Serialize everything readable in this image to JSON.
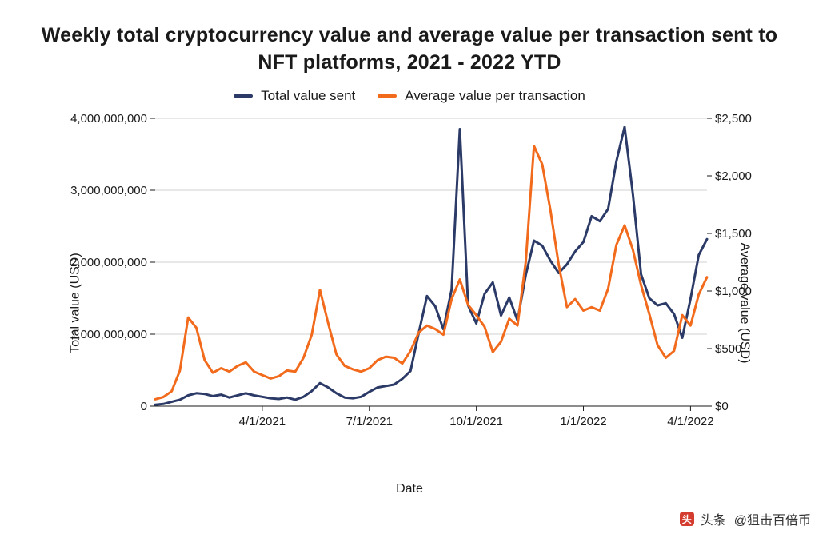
{
  "chart": {
    "type": "line-dual-axis",
    "title": "Weekly total cryptocurrency value and average value per transaction sent to NFT platforms, 2021 - 2022 YTD",
    "x_axis": {
      "label": "Date",
      "tick_labels": [
        "4/1/2021",
        "7/1/2021",
        "10/1/2021",
        "1/1/2022",
        "4/1/2022"
      ],
      "tick_positions_weeks": [
        13,
        26,
        39,
        52,
        65
      ],
      "range_weeks": [
        0,
        67
      ],
      "fontsize": 15
    },
    "y_left": {
      "label": "Total value (USD)",
      "ticks": [
        0,
        1000000000,
        2000000000,
        3000000000,
        4000000000
      ],
      "tick_labels": [
        "0",
        "1,000,000,000",
        "2,000,000,000",
        "3,000,000,000",
        "4,000,000,000"
      ],
      "range": [
        0,
        4000000000
      ],
      "fontsize": 15
    },
    "y_right": {
      "label": "Average value (USD)",
      "ticks": [
        0,
        500,
        1000,
        1500,
        2000,
        2500
      ],
      "tick_labels": [
        "$0",
        "$500",
        "$1,000",
        "$1,500",
        "$2,000",
        "$2,500"
      ],
      "range": [
        0,
        2500
      ],
      "fontsize": 15
    },
    "legend": {
      "items": [
        {
          "label": "Total value sent",
          "color": "#2b3a67"
        },
        {
          "label": "Average value per transaction",
          "color": "#f26a1b"
        }
      ],
      "fontsize": 17
    },
    "series": [
      {
        "name": "Total value sent",
        "axis": "left",
        "color": "#2b3a67",
        "line_width": 3,
        "values": [
          20000000,
          30000000,
          60000000,
          90000000,
          150000000,
          180000000,
          170000000,
          140000000,
          160000000,
          120000000,
          150000000,
          180000000,
          150000000,
          130000000,
          110000000,
          100000000,
          120000000,
          90000000,
          130000000,
          210000000,
          320000000,
          260000000,
          180000000,
          120000000,
          110000000,
          130000000,
          200000000,
          260000000,
          280000000,
          300000000,
          380000000,
          490000000,
          1020000000,
          1530000000,
          1390000000,
          1070000000,
          1620000000,
          3850000000,
          1400000000,
          1150000000,
          1560000000,
          1720000000,
          1260000000,
          1510000000,
          1190000000,
          1820000000,
          2300000000,
          2230000000,
          2020000000,
          1850000000,
          1970000000,
          2150000000,
          2280000000,
          2640000000,
          2570000000,
          2740000000,
          3400000000,
          3880000000,
          2950000000,
          1830000000,
          1500000000,
          1400000000,
          1430000000,
          1280000000,
          950000000,
          1490000000,
          2100000000,
          2320000000
        ]
      },
      {
        "name": "Average value per transaction",
        "axis": "right",
        "color": "#f26a1b",
        "line_width": 3,
        "values": [
          60,
          80,
          130,
          310,
          770,
          680,
          400,
          290,
          330,
          300,
          350,
          380,
          300,
          270,
          240,
          260,
          310,
          300,
          420,
          620,
          1010,
          720,
          450,
          350,
          320,
          300,
          330,
          400,
          430,
          420,
          370,
          480,
          640,
          700,
          670,
          620,
          930,
          1100,
          880,
          790,
          690,
          470,
          560,
          760,
          700,
          1250,
          2260,
          2100,
          1700,
          1230,
          860,
          930,
          830,
          860,
          830,
          1020,
          1400,
          1570,
          1360,
          1050,
          800,
          530,
          420,
          480,
          790,
          700,
          970,
          1120
        ]
      }
    ],
    "style": {
      "background": "#ffffff",
      "grid_color": "#d0d0d0",
      "axis_color": "#1a1a1a",
      "title_fontsize": 25,
      "title_weight": 600,
      "label_fontsize": 16,
      "plot_inner_width": 690,
      "plot_inner_height": 360
    }
  },
  "footer": {
    "prefix": "头条",
    "handle": "@狙击百倍币"
  }
}
